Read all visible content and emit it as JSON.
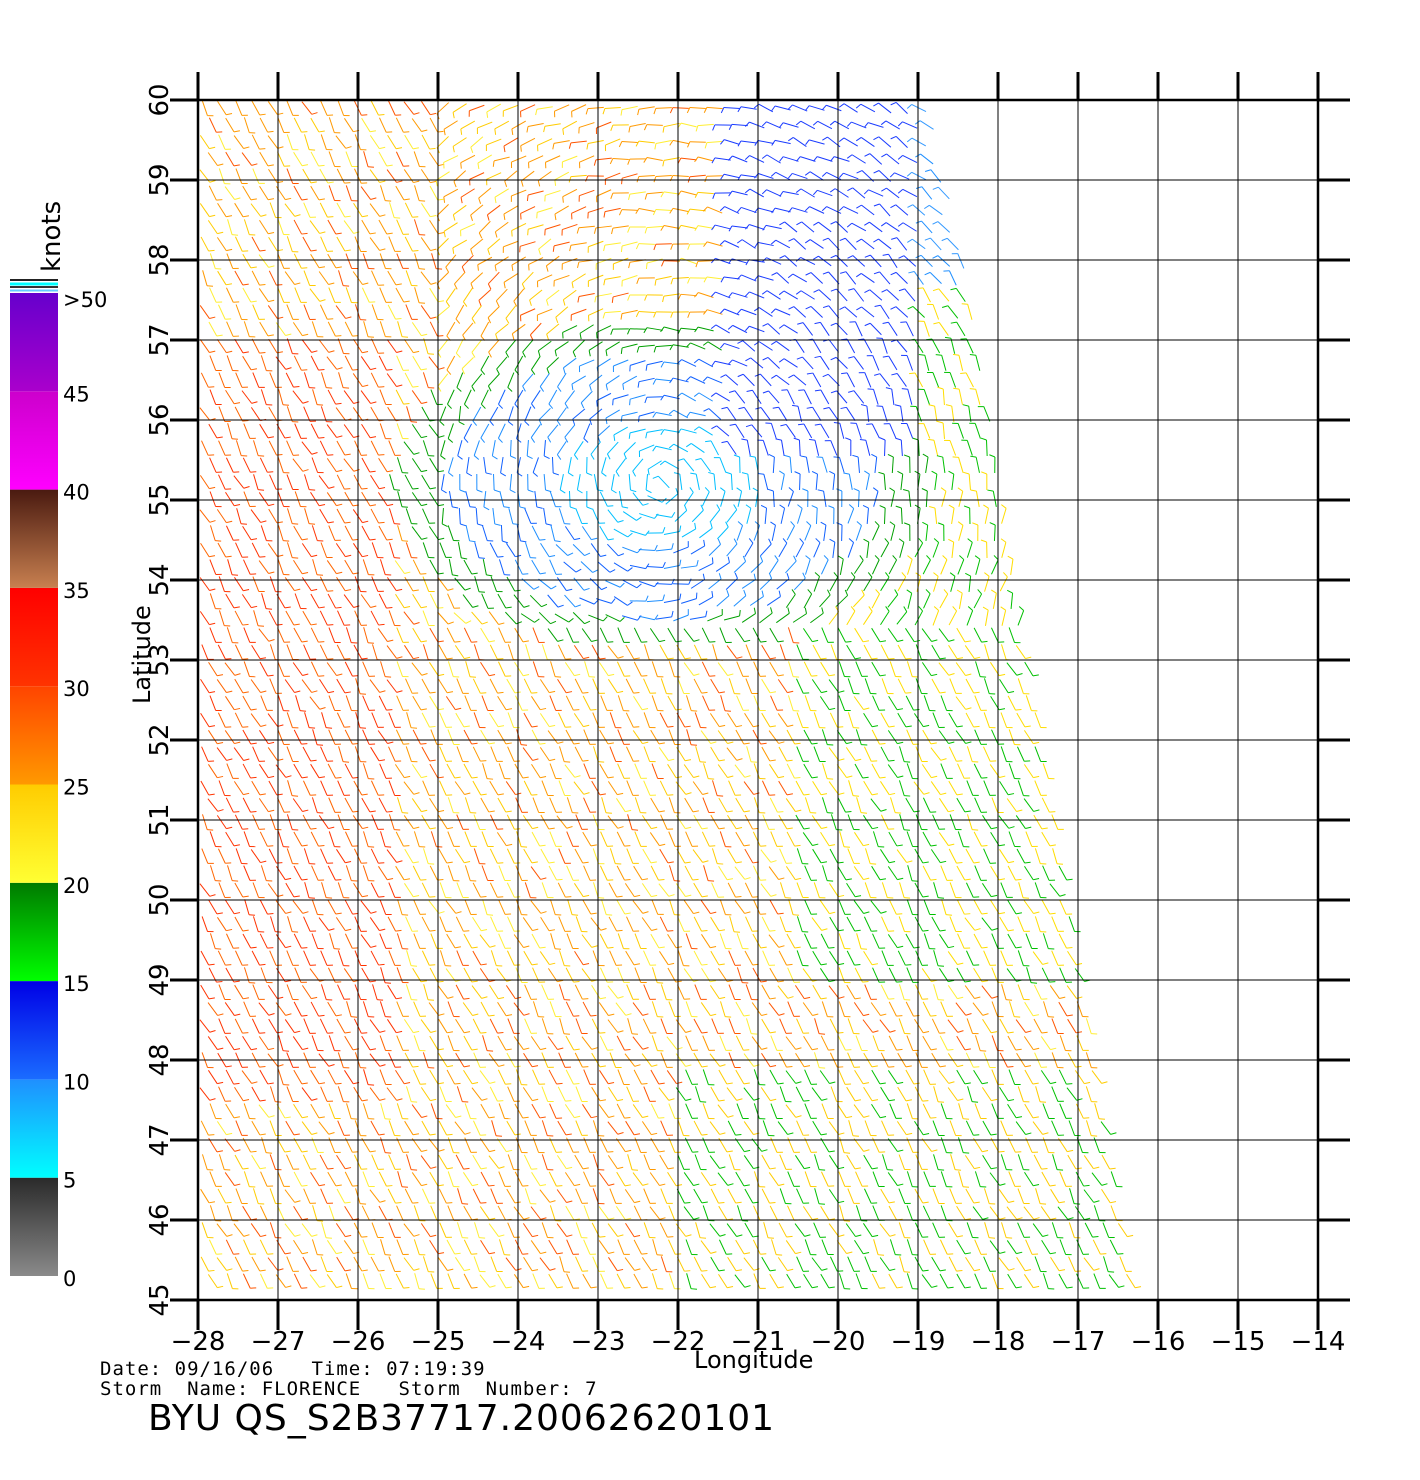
{
  "map": {
    "lon_range": [
      -28,
      -14
    ],
    "lat_range": [
      45,
      60
    ],
    "lon_ticks": [
      "−28",
      "−27",
      "−26",
      "−25",
      "−24",
      "−23",
      "−22",
      "−21",
      "−20",
      "−19",
      "−18",
      "−17",
      "−16",
      "−15",
      "−14"
    ],
    "lat_ticks": [
      "45",
      "46",
      "47",
      "48",
      "49",
      "50",
      "51",
      "52",
      "53",
      "54",
      "55",
      "56",
      "57",
      "58",
      "59",
      "60"
    ],
    "xlabel": "Longitude",
    "ylabel": "Latitude",
    "grid": true
  },
  "colorbar": {
    "unit": "knots",
    "labels": [
      "0",
      "5",
      "10",
      "15",
      "20",
      "25",
      "30",
      "35",
      "40",
      "45",
      ">50"
    ],
    "bands": [
      {
        "from": 0,
        "to": 5,
        "top": "#2a2a2a",
        "bottom": "#8a8a8a"
      },
      {
        "from": 5,
        "to": 10,
        "top": "#1f8fff",
        "bottom": "#00ffff"
      },
      {
        "from": 10,
        "to": 15,
        "top": "#0000e6",
        "bottom": "#1a6cff"
      },
      {
        "from": 15,
        "to": 20,
        "top": "#007a00",
        "bottom": "#00ff00"
      },
      {
        "from": 20,
        "to": 25,
        "top": "#ffcc00",
        "bottom": "#ffff33"
      },
      {
        "from": 25,
        "to": 30,
        "top": "#ff4400",
        "bottom": "#ff9900"
      },
      {
        "from": 30,
        "to": 35,
        "top": "#ff0000",
        "bottom": "#ff3300"
      },
      {
        "from": 35,
        "to": 40,
        "top": "#4a1a10",
        "bottom": "#c88050"
      },
      {
        "from": 40,
        "to": 45,
        "top": "#cc00cc",
        "bottom": "#ff00ff"
      },
      {
        "from": 45,
        "to": 50,
        "top": "#6600cc",
        "bottom": "#aa00cc"
      }
    ]
  },
  "info": {
    "date_line": "Date: 09/16/06   Time: 07:19:39",
    "storm_line": "Storm  Name: FLORENCE   Storm  Number: 7",
    "product_id": "BYU  QS_S2B37717.20062620101"
  }
}
